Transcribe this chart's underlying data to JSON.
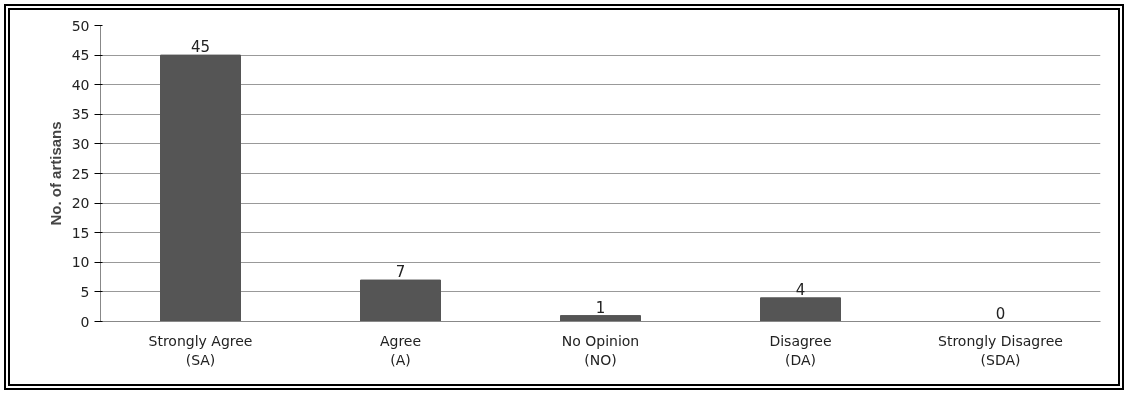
{
  "chart_data": {
    "type": "bar",
    "ylabel": "No. of artisans",
    "categories": [
      "Strongly Agree (SA)",
      "Agree (A)",
      "No Opinion (NO)",
      "Disagree (DA)",
      "Strongly Disagree (SDA)"
    ],
    "values": [
      45,
      7,
      1,
      4,
      0
    ],
    "color": "#555555",
    "ylim": [
      0,
      50
    ],
    "yticks": [
      0,
      5,
      10,
      15,
      20,
      25,
      30,
      35,
      40,
      45,
      50
    ],
    "grid": "y",
    "data_labels": true
  }
}
